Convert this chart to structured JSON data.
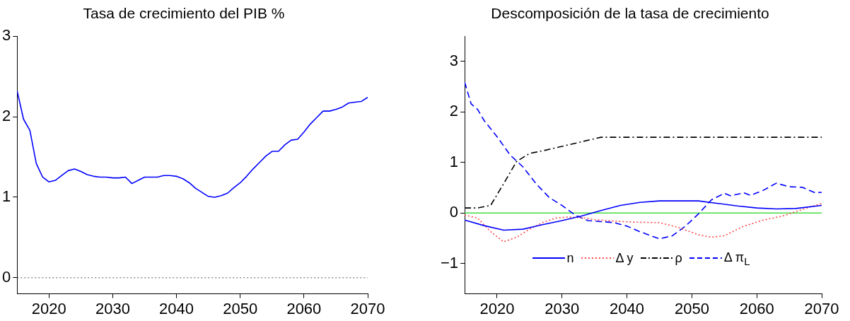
{
  "chart_data": [
    {
      "type": "line",
      "title": "Tasa de crecimiento del PIB %",
      "xlim": [
        2015,
        2070
      ],
      "xticks": [
        2020,
        2030,
        2040,
        2050,
        2060,
        2070
      ],
      "ylim": [
        -0.2,
        3
      ],
      "yticks": [
        0,
        1,
        2,
        3
      ],
      "grid": false,
      "legend": false,
      "marker": "none",
      "ref_lines": [
        {
          "axis": "y",
          "value": 0,
          "color": "#555555",
          "line_style": "dotted"
        }
      ],
      "series": [
        {
          "color": "#0000ff",
          "line_style": "solid",
          "x": [
            2015,
            2016,
            2017,
            2018,
            2019,
            2020,
            2021,
            2022,
            2023,
            2024,
            2025,
            2026,
            2027,
            2028,
            2029,
            2030,
            2031,
            2032,
            2033,
            2034,
            2035,
            2036,
            2037,
            2038,
            2039,
            2040,
            2041,
            2042,
            2043,
            2044,
            2045,
            2046,
            2047,
            2048,
            2049,
            2050,
            2051,
            2052,
            2053,
            2054,
            2055,
            2056,
            2057,
            2058,
            2059,
            2060,
            2061,
            2062,
            2063,
            2064,
            2065,
            2066,
            2067,
            2068,
            2069,
            2070
          ],
          "values": [
            2.32,
            1.97,
            1.83,
            1.42,
            1.25,
            1.19,
            1.21,
            1.27,
            1.33,
            1.35,
            1.32,
            1.28,
            1.26,
            1.25,
            1.25,
            1.24,
            1.24,
            1.25,
            1.17,
            1.21,
            1.25,
            1.25,
            1.25,
            1.27,
            1.27,
            1.26,
            1.23,
            1.18,
            1.11,
            1.06,
            1.01,
            1.0,
            1.02,
            1.05,
            1.12,
            1.18,
            1.26,
            1.35,
            1.43,
            1.51,
            1.57,
            1.57,
            1.65,
            1.71,
            1.72,
            1.81,
            1.91,
            1.99,
            2.07,
            2.07,
            2.09,
            2.12,
            2.17,
            2.18,
            2.19,
            2.24
          ]
        }
      ]
    },
    {
      "type": "line",
      "title": "Descomposición de la tasa de crecimiento",
      "xlim": [
        2015,
        2070
      ],
      "xticks": [
        2020,
        2030,
        2040,
        2050,
        2060,
        2070
      ],
      "ylim": [
        -1.6,
        3.5
      ],
      "yticks": [
        -1,
        0,
        1,
        2,
        3
      ],
      "grid": false,
      "legend": "bottom",
      "marker": "none",
      "ref_lines": [
        {
          "axis": "y",
          "value": 0,
          "color": "#44dd44",
          "line_style": "solid"
        }
      ],
      "series": [
        {
          "name": "n",
          "color": "#0000ff",
          "line_style": "solid",
          "x": [
            2015,
            2018,
            2021,
            2024,
            2027,
            2030,
            2033,
            2036,
            2039,
            2042,
            2045,
            2048,
            2051,
            2054,
            2057,
            2060,
            2063,
            2066,
            2070
          ],
          "values": [
            -0.14,
            -0.25,
            -0.34,
            -0.32,
            -0.23,
            -0.15,
            -0.06,
            0.05,
            0.15,
            0.21,
            0.24,
            0.24,
            0.24,
            0.19,
            0.14,
            0.1,
            0.08,
            0.09,
            0.15
          ]
        },
        {
          "name": "Δ y",
          "color": "#ff4444",
          "line_style": "dotted",
          "x": [
            2015,
            2017,
            2019,
            2021,
            2023,
            2025,
            2027,
            2029,
            2031,
            2033,
            2035,
            2038,
            2041,
            2045,
            2048,
            2051,
            2053,
            2055,
            2058,
            2061,
            2064,
            2067,
            2070
          ],
          "values": [
            -0.04,
            -0.1,
            -0.37,
            -0.57,
            -0.48,
            -0.32,
            -0.19,
            -0.1,
            -0.08,
            -0.09,
            -0.13,
            -0.16,
            -0.18,
            -0.19,
            -0.29,
            -0.43,
            -0.48,
            -0.45,
            -0.26,
            -0.14,
            -0.06,
            0.07,
            0.19
          ]
        },
        {
          "name": "ρ",
          "color": "#000000",
          "line_style": "dashdot",
          "x": [
            2015,
            2017,
            2019,
            2021,
            2023,
            2025,
            2027,
            2030,
            2033,
            2036,
            2070
          ],
          "values": [
            0.1,
            0.1,
            0.15,
            0.58,
            1.02,
            1.18,
            1.23,
            1.32,
            1.41,
            1.5,
            1.5
          ]
        },
        {
          "name": "Δ π$_{L}$",
          "color": "#0000ff",
          "line_style": "dashed",
          "x": [
            2015,
            2016,
            2017,
            2018,
            2020,
            2022,
            2024,
            2026,
            2028,
            2030,
            2032,
            2034,
            2036,
            2038,
            2040,
            2042,
            2045,
            2047,
            2049,
            2051,
            2053,
            2055,
            2056,
            2058,
            2059,
            2061,
            2063,
            2065,
            2067,
            2069,
            2070
          ],
          "values": [
            2.59,
            2.16,
            2.05,
            1.83,
            1.51,
            1.15,
            0.91,
            0.58,
            0.31,
            0.15,
            -0.04,
            -0.15,
            -0.17,
            -0.19,
            -0.26,
            -0.37,
            -0.51,
            -0.45,
            -0.26,
            -0.02,
            0.26,
            0.39,
            0.34,
            0.4,
            0.35,
            0.45,
            0.59,
            0.52,
            0.51,
            0.4,
            0.41
          ]
        }
      ]
    }
  ]
}
